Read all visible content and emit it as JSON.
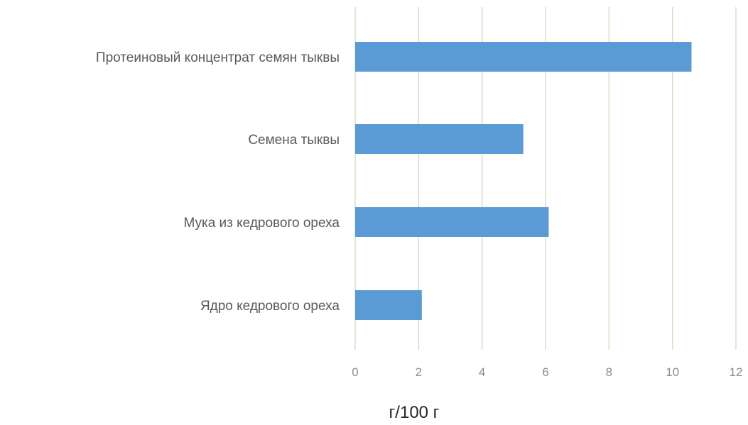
{
  "chart_data": {
    "type": "bar",
    "orientation": "horizontal",
    "categories": [
      "Протеиновый концентрат семян тыквы",
      "Семена тыквы",
      "Мука из кедрового ореха",
      "Ядро кедрового ореха"
    ],
    "values": [
      10.6,
      5.3,
      6.1,
      2.1
    ],
    "xlim": [
      0,
      12
    ],
    "xticks": [
      "0",
      "2",
      "4",
      "6",
      "8",
      "10",
      "12"
    ],
    "xlabel": "г/100 г",
    "ylabel": "",
    "title": "",
    "grid": "vertical",
    "legend": "none",
    "bar_color": "#5B9BD5",
    "grid_color": "#d3e0c6"
  }
}
